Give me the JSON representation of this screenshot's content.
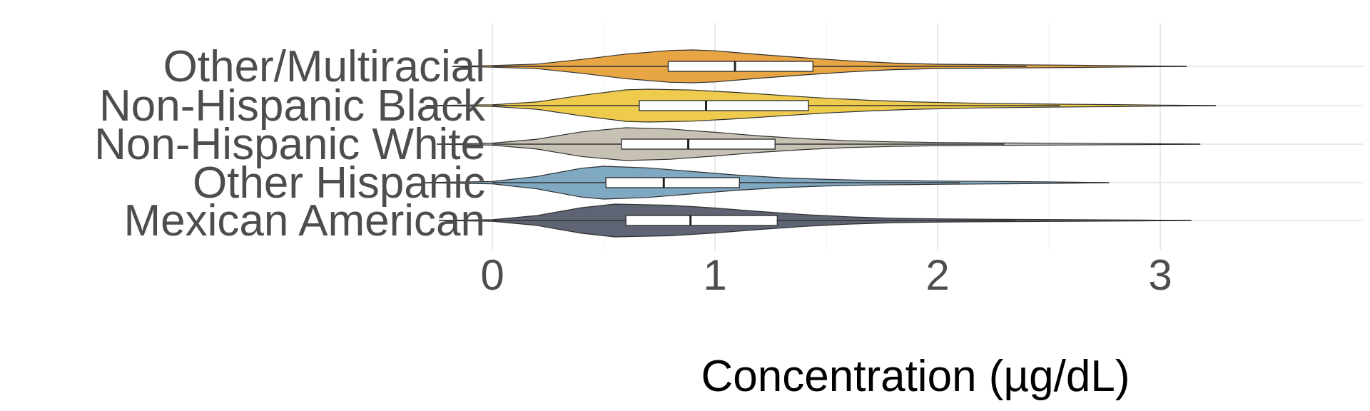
{
  "chart_data": {
    "type": "violin",
    "xlabel": "Concentration (µg/dL)",
    "ylabel": "",
    "xlim": [
      -0.27,
      3.42
    ],
    "xticks": [
      0,
      1,
      2,
      3
    ],
    "grid": true,
    "legend": "none",
    "categories": [
      "Other/Multiracial",
      "Non-Hispanic Black",
      "Non-Hispanic White",
      "Other Hispanic",
      "Mexican American"
    ],
    "series": [
      {
        "category": "Other/Multiracial",
        "color": "#E8A544",
        "range": [
          -0.18,
          3.12
        ],
        "box": {
          "q1": 0.79,
          "median": 1.09,
          "q3": 1.44,
          "whisker_low": 0.0,
          "whisker_high": 2.4
        },
        "density": [
          [
            -0.18,
            0.0
          ],
          [
            0.0,
            0.05
          ],
          [
            0.2,
            0.14
          ],
          [
            0.4,
            0.42
          ],
          [
            0.6,
            0.75
          ],
          [
            0.8,
            0.97
          ],
          [
            0.9,
            1.0
          ],
          [
            1.0,
            0.95
          ],
          [
            1.2,
            0.72
          ],
          [
            1.4,
            0.52
          ],
          [
            1.6,
            0.34
          ],
          [
            1.8,
            0.2
          ],
          [
            2.0,
            0.13
          ],
          [
            2.3,
            0.1
          ],
          [
            2.6,
            0.07
          ],
          [
            2.9,
            0.03
          ],
          [
            3.12,
            0.0
          ]
        ]
      },
      {
        "category": "Non-Hispanic Black",
        "color": "#EECB4C",
        "range": [
          -0.3,
          3.25
        ],
        "box": {
          "q1": 0.66,
          "median": 0.96,
          "q3": 1.42,
          "whisker_low": 0.0,
          "whisker_high": 2.55
        },
        "density": [
          [
            -0.3,
            0.0
          ],
          [
            0.0,
            0.05
          ],
          [
            0.2,
            0.22
          ],
          [
            0.4,
            0.62
          ],
          [
            0.6,
            0.96
          ],
          [
            0.7,
            1.0
          ],
          [
            0.9,
            0.95
          ],
          [
            1.1,
            0.8
          ],
          [
            1.3,
            0.62
          ],
          [
            1.5,
            0.45
          ],
          [
            1.7,
            0.32
          ],
          [
            1.9,
            0.22
          ],
          [
            2.2,
            0.14
          ],
          [
            2.5,
            0.09
          ],
          [
            2.8,
            0.06
          ],
          [
            3.0,
            0.03
          ],
          [
            3.25,
            0.0
          ]
        ]
      },
      {
        "category": "Non-Hispanic White",
        "color": "#C7C1B3",
        "range": [
          -0.25,
          3.18
        ],
        "box": {
          "q1": 0.58,
          "median": 0.88,
          "q3": 1.27,
          "whisker_low": 0.0,
          "whisker_high": 2.3
        },
        "density": [
          [
            -0.25,
            0.0
          ],
          [
            0.0,
            0.06
          ],
          [
            0.2,
            0.3
          ],
          [
            0.4,
            0.75
          ],
          [
            0.6,
            1.0
          ],
          [
            0.8,
            0.92
          ],
          [
            1.0,
            0.72
          ],
          [
            1.2,
            0.5
          ],
          [
            1.4,
            0.33
          ],
          [
            1.6,
            0.21
          ],
          [
            1.8,
            0.14
          ],
          [
            2.0,
            0.1
          ],
          [
            2.3,
            0.07
          ],
          [
            2.6,
            0.05
          ],
          [
            2.9,
            0.03
          ],
          [
            3.18,
            0.0
          ]
        ]
      },
      {
        "category": "Other Hispanic",
        "color": "#7FA8C2",
        "range": [
          -0.32,
          2.77
        ],
        "box": {
          "q1": 0.51,
          "median": 0.77,
          "q3": 1.11,
          "whisker_low": 0.0,
          "whisker_high": 2.1
        },
        "density": [
          [
            -0.32,
            0.0
          ],
          [
            0.0,
            0.07
          ],
          [
            0.2,
            0.38
          ],
          [
            0.4,
            0.88
          ],
          [
            0.5,
            1.0
          ],
          [
            0.7,
            0.9
          ],
          [
            0.9,
            0.68
          ],
          [
            1.1,
            0.46
          ],
          [
            1.3,
            0.3
          ],
          [
            1.5,
            0.2
          ],
          [
            1.7,
            0.14
          ],
          [
            2.0,
            0.1
          ],
          [
            2.3,
            0.07
          ],
          [
            2.55,
            0.04
          ],
          [
            2.77,
            0.0
          ]
        ]
      },
      {
        "category": "Mexican American",
        "color": "#5E6473",
        "range": [
          -0.24,
          3.14
        ],
        "box": {
          "q1": 0.6,
          "median": 0.89,
          "q3": 1.28,
          "whisker_low": 0.0,
          "whisker_high": 2.35
        },
        "density": [
          [
            -0.24,
            0.0
          ],
          [
            0.0,
            0.05
          ],
          [
            0.2,
            0.3
          ],
          [
            0.4,
            0.78
          ],
          [
            0.55,
            1.0
          ],
          [
            0.8,
            0.93
          ],
          [
            1.0,
            0.76
          ],
          [
            1.2,
            0.55
          ],
          [
            1.4,
            0.36
          ],
          [
            1.6,
            0.22
          ],
          [
            1.8,
            0.14
          ],
          [
            2.0,
            0.1
          ],
          [
            2.3,
            0.07
          ],
          [
            2.6,
            0.05
          ],
          [
            2.9,
            0.03
          ],
          [
            3.14,
            0.0
          ]
        ]
      }
    ]
  }
}
